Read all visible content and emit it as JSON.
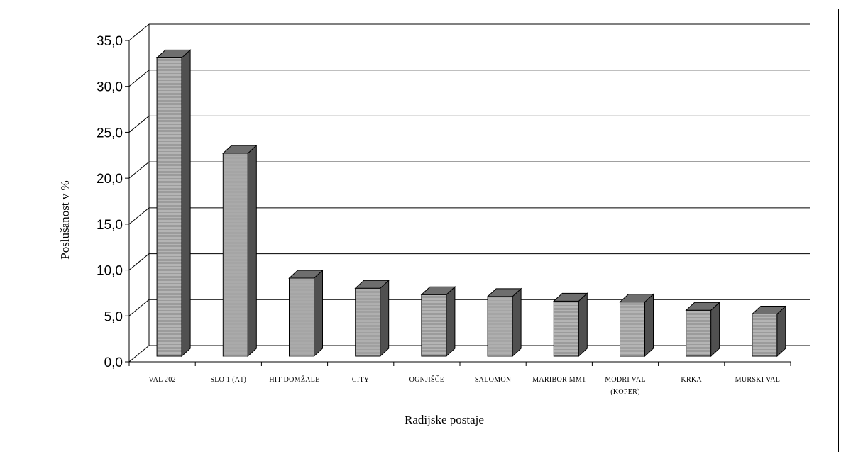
{
  "chart_data": {
    "type": "bar",
    "style": "3d",
    "xlabel": "Radijske postaje",
    "ylabel": "Poslušanost v %",
    "ylim": [
      0,
      35
    ],
    "ytick_step": 5,
    "ytick_labels": [
      "0,0",
      "5,0",
      "10,0",
      "15,0",
      "20,0",
      "25,0",
      "30,0",
      "35,0"
    ],
    "grid": true,
    "categories": [
      [
        "VAL 202"
      ],
      [
        "SLO 1 (A1)"
      ],
      [
        "HIT DOMŽALE"
      ],
      [
        "CITY"
      ],
      [
        "OGNJIŠČE"
      ],
      [
        "SALOMON"
      ],
      [
        "MARIBOR MM1"
      ],
      [
        "MODRI VAL",
        "(KOPER)"
      ],
      [
        "KRKA"
      ],
      [
        "MURSKI VAL"
      ]
    ],
    "values": [
      32.5,
      22.1,
      8.5,
      7.4,
      6.7,
      6.5,
      6.0,
      5.9,
      5.0,
      4.6
    ],
    "colors": {
      "bar_front": "#b4b4b4",
      "bar_side": "#505050",
      "bar_top": "#6e6e6e",
      "grid": "#000000"
    }
  }
}
